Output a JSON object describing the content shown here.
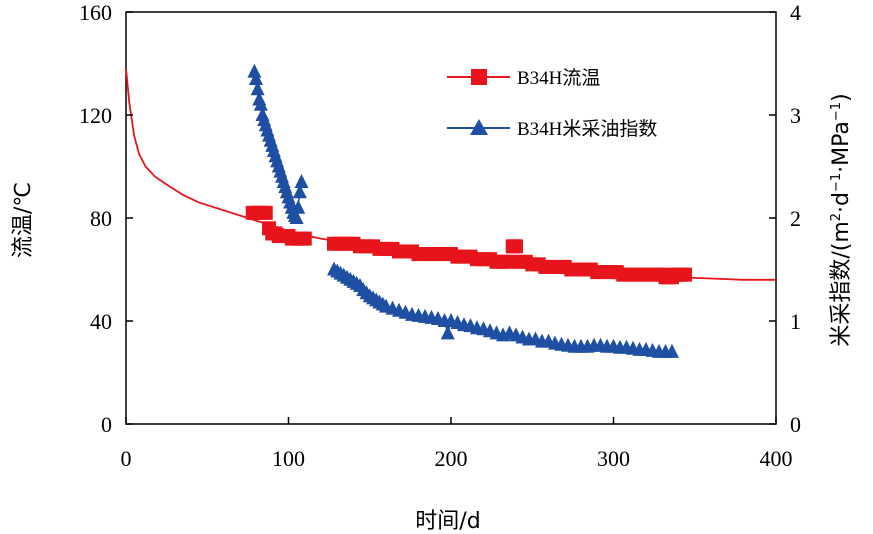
{
  "chart_data": {
    "type": "line",
    "x_axis": {
      "label": "时间/d",
      "min": 0,
      "max": 400,
      "ticks": [
        0,
        100,
        200,
        300,
        400
      ]
    },
    "y_left": {
      "label": "流温/℃",
      "min": 0,
      "max": 160,
      "ticks": [
        0,
        40,
        80,
        120,
        160
      ]
    },
    "y_right": {
      "label_main": "米采指数/(m",
      "label_sup1": "2",
      "label_mid1": "·d",
      "label_sup2": "−1",
      "label_mid2": "·MPa",
      "label_sup3": "−1",
      "label_end": ")",
      "min": 0,
      "max": 4,
      "ticks": [
        0,
        1,
        2,
        3,
        4
      ]
    },
    "grid": false,
    "legend_position": "top-right",
    "colors": {
      "temp": "#e8141c",
      "index": "#1f4fa3"
    },
    "series": [
      {
        "name": "B34H流温",
        "axis": "left",
        "line": [
          [
            0,
            138
          ],
          [
            2,
            125
          ],
          [
            5,
            112
          ],
          [
            8,
            105
          ],
          [
            12,
            100
          ],
          [
            18,
            96
          ],
          [
            25,
            93
          ],
          [
            35,
            89
          ],
          [
            45,
            86
          ],
          [
            55,
            84
          ],
          [
            65,
            82
          ],
          [
            75,
            80
          ],
          [
            85,
            78
          ],
          [
            95,
            76
          ],
          [
            105,
            74
          ],
          [
            120,
            72
          ],
          [
            140,
            70
          ],
          [
            160,
            68
          ],
          [
            180,
            66
          ],
          [
            200,
            65
          ],
          [
            220,
            63
          ],
          [
            240,
            62
          ],
          [
            260,
            61
          ],
          [
            280,
            60
          ],
          [
            300,
            59
          ],
          [
            320,
            58
          ],
          [
            340,
            57
          ],
          [
            360,
            56.5
          ],
          [
            380,
            56
          ],
          [
            400,
            56
          ]
        ],
        "markers": [
          [
            78,
            82
          ],
          [
            80,
            82
          ],
          [
            82,
            82
          ],
          [
            84,
            82
          ],
          [
            86,
            82
          ],
          [
            88,
            76
          ],
          [
            90,
            74
          ],
          [
            92,
            74
          ],
          [
            94,
            73
          ],
          [
            96,
            73
          ],
          [
            98,
            73
          ],
          [
            100,
            73
          ],
          [
            102,
            72
          ],
          [
            104,
            72
          ],
          [
            106,
            72
          ],
          [
            108,
            72
          ],
          [
            110,
            72
          ],
          [
            128,
            70
          ],
          [
            132,
            70
          ],
          [
            136,
            70
          ],
          [
            140,
            70
          ],
          [
            144,
            69
          ],
          [
            148,
            69
          ],
          [
            152,
            69
          ],
          [
            156,
            68
          ],
          [
            160,
            68
          ],
          [
            164,
            68
          ],
          [
            168,
            67
          ],
          [
            172,
            67
          ],
          [
            176,
            67
          ],
          [
            180,
            66
          ],
          [
            184,
            66
          ],
          [
            188,
            66
          ],
          [
            192,
            66
          ],
          [
            196,
            66
          ],
          [
            200,
            66
          ],
          [
            204,
            65
          ],
          [
            208,
            65
          ],
          [
            212,
            65
          ],
          [
            216,
            64
          ],
          [
            220,
            64
          ],
          [
            224,
            64
          ],
          [
            228,
            63
          ],
          [
            232,
            63
          ],
          [
            236,
            63
          ],
          [
            238,
            69
          ],
          [
            240,
            69
          ],
          [
            242,
            63
          ],
          [
            246,
            63
          ],
          [
            250,
            62
          ],
          [
            254,
            62
          ],
          [
            258,
            61
          ],
          [
            262,
            61
          ],
          [
            266,
            61
          ],
          [
            270,
            61
          ],
          [
            274,
            60
          ],
          [
            278,
            60
          ],
          [
            282,
            60
          ],
          [
            286,
            60
          ],
          [
            290,
            59
          ],
          [
            294,
            59
          ],
          [
            298,
            59
          ],
          [
            302,
            59
          ],
          [
            306,
            58
          ],
          [
            310,
            58
          ],
          [
            314,
            58
          ],
          [
            318,
            58
          ],
          [
            322,
            58
          ],
          [
            326,
            58
          ],
          [
            330,
            58
          ],
          [
            332,
            57
          ],
          [
            334,
            57
          ],
          [
            336,
            57
          ],
          [
            338,
            58
          ],
          [
            340,
            58
          ],
          [
            342,
            58
          ],
          [
            344,
            58
          ]
        ]
      },
      {
        "name": "B34H米采油指数",
        "axis": "right",
        "line": [
          [
            79,
            3.42
          ],
          [
            80,
            3.3
          ],
          [
            81,
            3.2
          ],
          [
            82,
            3.1
          ],
          [
            84,
            3.05
          ],
          [
            86,
            2.95
          ],
          [
            88,
            2.85
          ],
          [
            90,
            2.75
          ],
          [
            92,
            2.6
          ],
          [
            94,
            2.5
          ],
          [
            96,
            2.4
          ],
          [
            98,
            2.3
          ],
          [
            100,
            2.2
          ],
          [
            102,
            2.1
          ],
          [
            104,
            2.05
          ],
          [
            106,
            2.15
          ],
          [
            108,
            2.3
          ]
        ],
        "markers": [
          [
            79,
            3.42
          ],
          [
            80,
            3.35
          ],
          [
            81,
            3.25
          ],
          [
            82,
            3.15
          ],
          [
            83,
            3.1
          ],
          [
            84,
            3.0
          ],
          [
            85,
            2.95
          ],
          [
            86,
            2.9
          ],
          [
            87,
            2.85
          ],
          [
            88,
            2.8
          ],
          [
            89,
            2.75
          ],
          [
            90,
            2.7
          ],
          [
            91,
            2.65
          ],
          [
            92,
            2.6
          ],
          [
            93,
            2.55
          ],
          [
            94,
            2.5
          ],
          [
            95,
            2.45
          ],
          [
            96,
            2.4
          ],
          [
            97,
            2.35
          ],
          [
            98,
            2.3
          ],
          [
            99,
            2.25
          ],
          [
            100,
            2.2
          ],
          [
            101,
            2.15
          ],
          [
            102,
            2.1
          ],
          [
            103,
            2.05
          ],
          [
            104,
            2.02
          ],
          [
            105,
            2.0
          ],
          [
            106,
            2.1
          ],
          [
            107,
            2.25
          ],
          [
            108,
            2.35
          ]
        ],
        "markers2": [
          [
            128,
            1.5
          ],
          [
            130,
            1.48
          ],
          [
            132,
            1.46
          ],
          [
            134,
            1.44
          ],
          [
            136,
            1.42
          ],
          [
            138,
            1.4
          ],
          [
            140,
            1.38
          ],
          [
            142,
            1.36
          ],
          [
            144,
            1.34
          ],
          [
            146,
            1.3
          ],
          [
            148,
            1.27
          ],
          [
            150,
            1.24
          ],
          [
            152,
            1.22
          ],
          [
            154,
            1.2
          ],
          [
            156,
            1.18
          ],
          [
            158,
            1.16
          ],
          [
            160,
            1.14
          ],
          [
            164,
            1.12
          ],
          [
            168,
            1.1
          ],
          [
            172,
            1.08
          ],
          [
            176,
            1.06
          ],
          [
            180,
            1.05
          ],
          [
            184,
            1.04
          ],
          [
            188,
            1.03
          ],
          [
            192,
            1.02
          ],
          [
            196,
            1.0
          ],
          [
            198,
            0.88
          ],
          [
            200,
            1.0
          ],
          [
            204,
            0.98
          ],
          [
            208,
            0.96
          ],
          [
            212,
            0.95
          ],
          [
            216,
            0.93
          ],
          [
            220,
            0.92
          ],
          [
            224,
            0.9
          ],
          [
            228,
            0.88
          ],
          [
            232,
            0.86
          ],
          [
            236,
            0.88
          ],
          [
            240,
            0.86
          ],
          [
            244,
            0.84
          ],
          [
            248,
            0.82
          ],
          [
            252,
            0.82
          ],
          [
            256,
            0.8
          ],
          [
            260,
            0.8
          ],
          [
            264,
            0.78
          ],
          [
            268,
            0.77
          ],
          [
            272,
            0.76
          ],
          [
            276,
            0.75
          ],
          [
            280,
            0.75
          ],
          [
            284,
            0.75
          ],
          [
            288,
            0.76
          ],
          [
            292,
            0.76
          ],
          [
            296,
            0.75
          ],
          [
            300,
            0.75
          ],
          [
            304,
            0.74
          ],
          [
            308,
            0.74
          ],
          [
            312,
            0.73
          ],
          [
            316,
            0.72
          ],
          [
            320,
            0.72
          ],
          [
            324,
            0.71
          ],
          [
            328,
            0.7
          ],
          [
            332,
            0.7
          ],
          [
            336,
            0.7
          ]
        ]
      }
    ]
  }
}
